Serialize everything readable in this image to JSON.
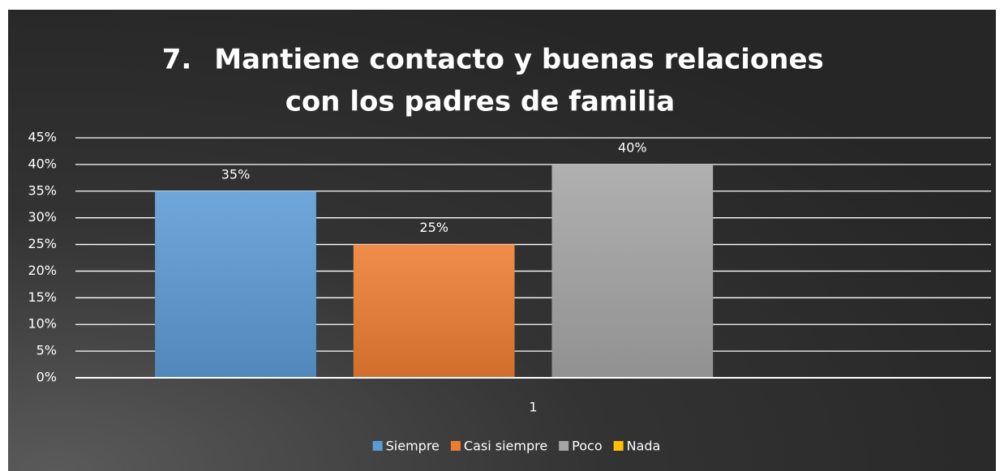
{
  "chart_data": {
    "type": "bar",
    "title": [
      "7.",
      "Mantiene contacto y buenas relaciones",
      "con los padres de familia"
    ],
    "categories": [
      "1"
    ],
    "series": [
      {
        "name": "Siempre",
        "color": "#5b9bd5",
        "values": [
          35
        ],
        "value_labels": [
          "35%"
        ]
      },
      {
        "name": "Casi siempre",
        "color": "#ed7d31",
        "values": [
          25
        ],
        "value_labels": [
          "25%"
        ]
      },
      {
        "name": "Poco",
        "color": "#a5a5a5",
        "values": [
          40
        ],
        "value_labels": [
          "40%"
        ]
      },
      {
        "name": "Nada",
        "color": "#ffc000",
        "values": [
          0
        ]
      }
    ],
    "ylim": [
      0,
      45
    ],
    "yticks": [
      {
        "value": 0,
        "label": "0%"
      },
      {
        "value": 5,
        "label": "5%"
      },
      {
        "value": 10,
        "label": "10%"
      },
      {
        "value": 15,
        "label": "15%"
      },
      {
        "value": 20,
        "label": "20%"
      },
      {
        "value": 25,
        "label": "25%"
      },
      {
        "value": 30,
        "label": "30%"
      },
      {
        "value": 35,
        "label": "35%"
      },
      {
        "value": 40,
        "label": "40%"
      },
      {
        "value": 45,
        "label": "45%"
      }
    ],
    "grid": true,
    "legend": "bottom"
  }
}
